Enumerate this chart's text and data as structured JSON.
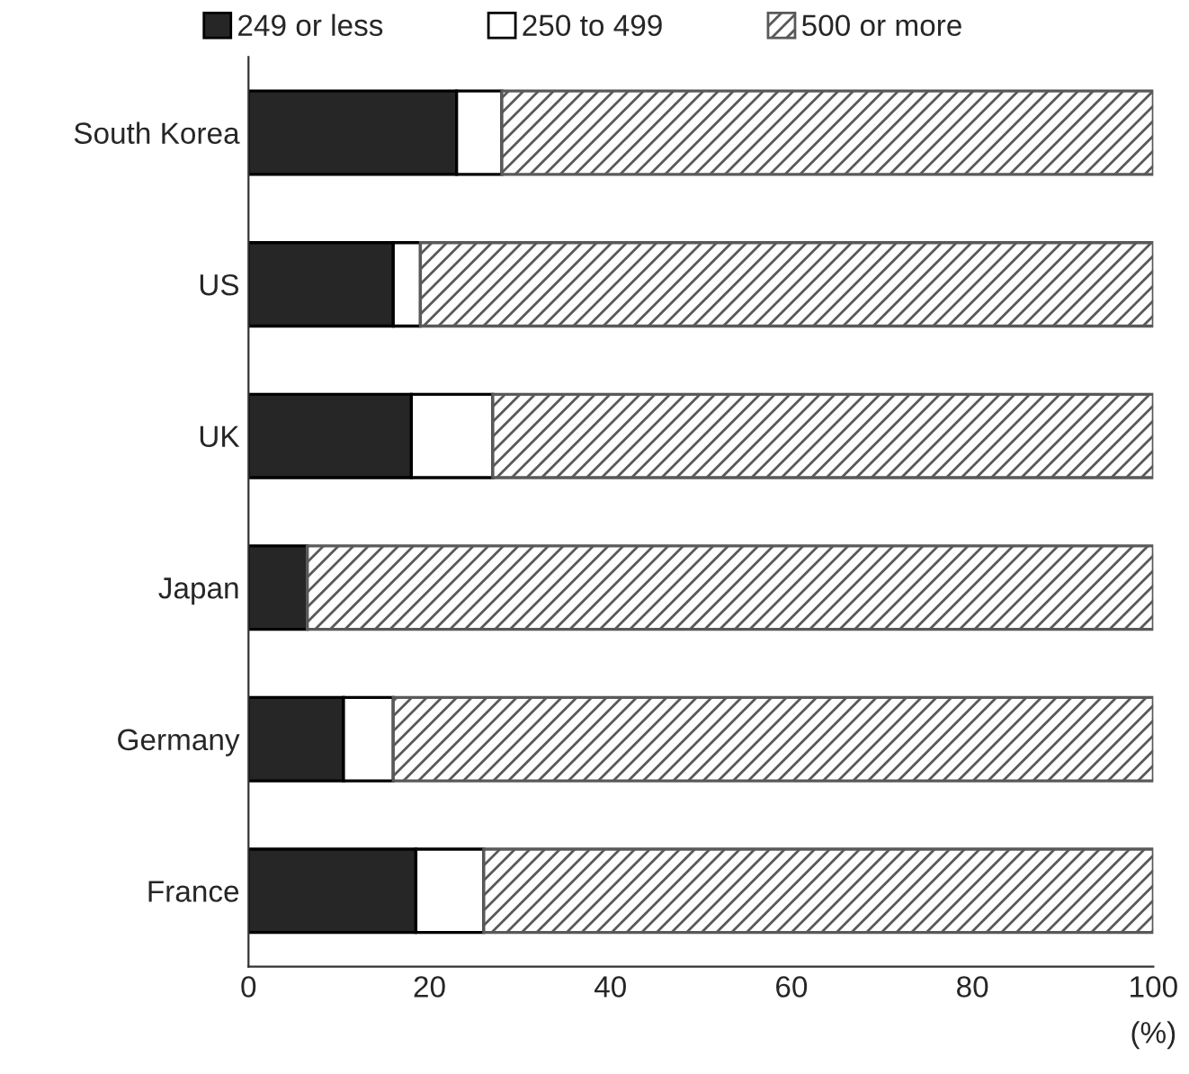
{
  "chart_data": {
    "type": "bar",
    "orientation": "horizontal",
    "stacked": true,
    "xlabel": "(%)",
    "categories": [
      "South Korea",
      "US",
      "UK",
      "Japan",
      "Germany",
      "France"
    ],
    "series": [
      {
        "name": "249 or less",
        "color": "#262626",
        "values": [
          23,
          16,
          18,
          6.5,
          10.5,
          18.5
        ]
      },
      {
        "name": "250 to 499",
        "color": "#ffffff",
        "values": [
          5,
          3,
          9,
          null,
          5.5,
          7.5
        ]
      },
      {
        "name": "500 or more",
        "color": "#595959",
        "values": [
          72,
          81,
          73,
          93.5,
          84,
          74
        ]
      }
    ],
    "xlim": [
      0,
      100
    ],
    "xticks": [
      0,
      20,
      40,
      60,
      80,
      100
    ],
    "grid": false,
    "legend": "top"
  }
}
